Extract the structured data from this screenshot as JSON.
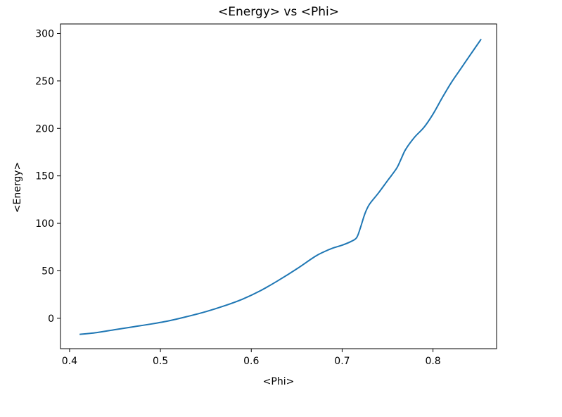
{
  "chart_data": {
    "type": "line",
    "title": "<Energy> vs <Phi>",
    "xlabel": "<Phi>",
    "ylabel": "<Energy>",
    "xlim": [
      0.39,
      0.87
    ],
    "ylim": [
      -32,
      310
    ],
    "xticks": [
      0.4,
      0.5,
      0.6,
      0.7,
      0.8
    ],
    "xtick_labels": [
      "0.4",
      "0.5",
      "0.6",
      "0.7",
      "0.8"
    ],
    "yticks": [
      0,
      50,
      100,
      150,
      200,
      250,
      300
    ],
    "ytick_labels": [
      "0",
      "50",
      "100",
      "150",
      "200",
      "250",
      "300"
    ],
    "grid": false,
    "series": [
      {
        "color": "#1f77b4",
        "x": [
          0.411,
          0.43,
          0.45,
          0.47,
          0.49,
          0.51,
          0.53,
          0.55,
          0.57,
          0.59,
          0.61,
          0.63,
          0.65,
          0.67,
          0.68,
          0.69,
          0.7,
          0.71,
          0.716,
          0.72,
          0.725,
          0.73,
          0.74,
          0.75,
          0.76,
          0.765,
          0.77,
          0.78,
          0.79,
          0.8,
          0.81,
          0.82,
          0.83,
          0.84,
          0.853
        ],
        "y": [
          -17,
          -15,
          -12,
          -9,
          -6,
          -2.5,
          2,
          7,
          13,
          20,
          29,
          40,
          52,
          65,
          70,
          74,
          77,
          81,
          85,
          95,
          110,
          120,
          132,
          145,
          158,
          168,
          178,
          191,
          201,
          215,
          232,
          248,
          262,
          276,
          294
        ]
      }
    ]
  }
}
